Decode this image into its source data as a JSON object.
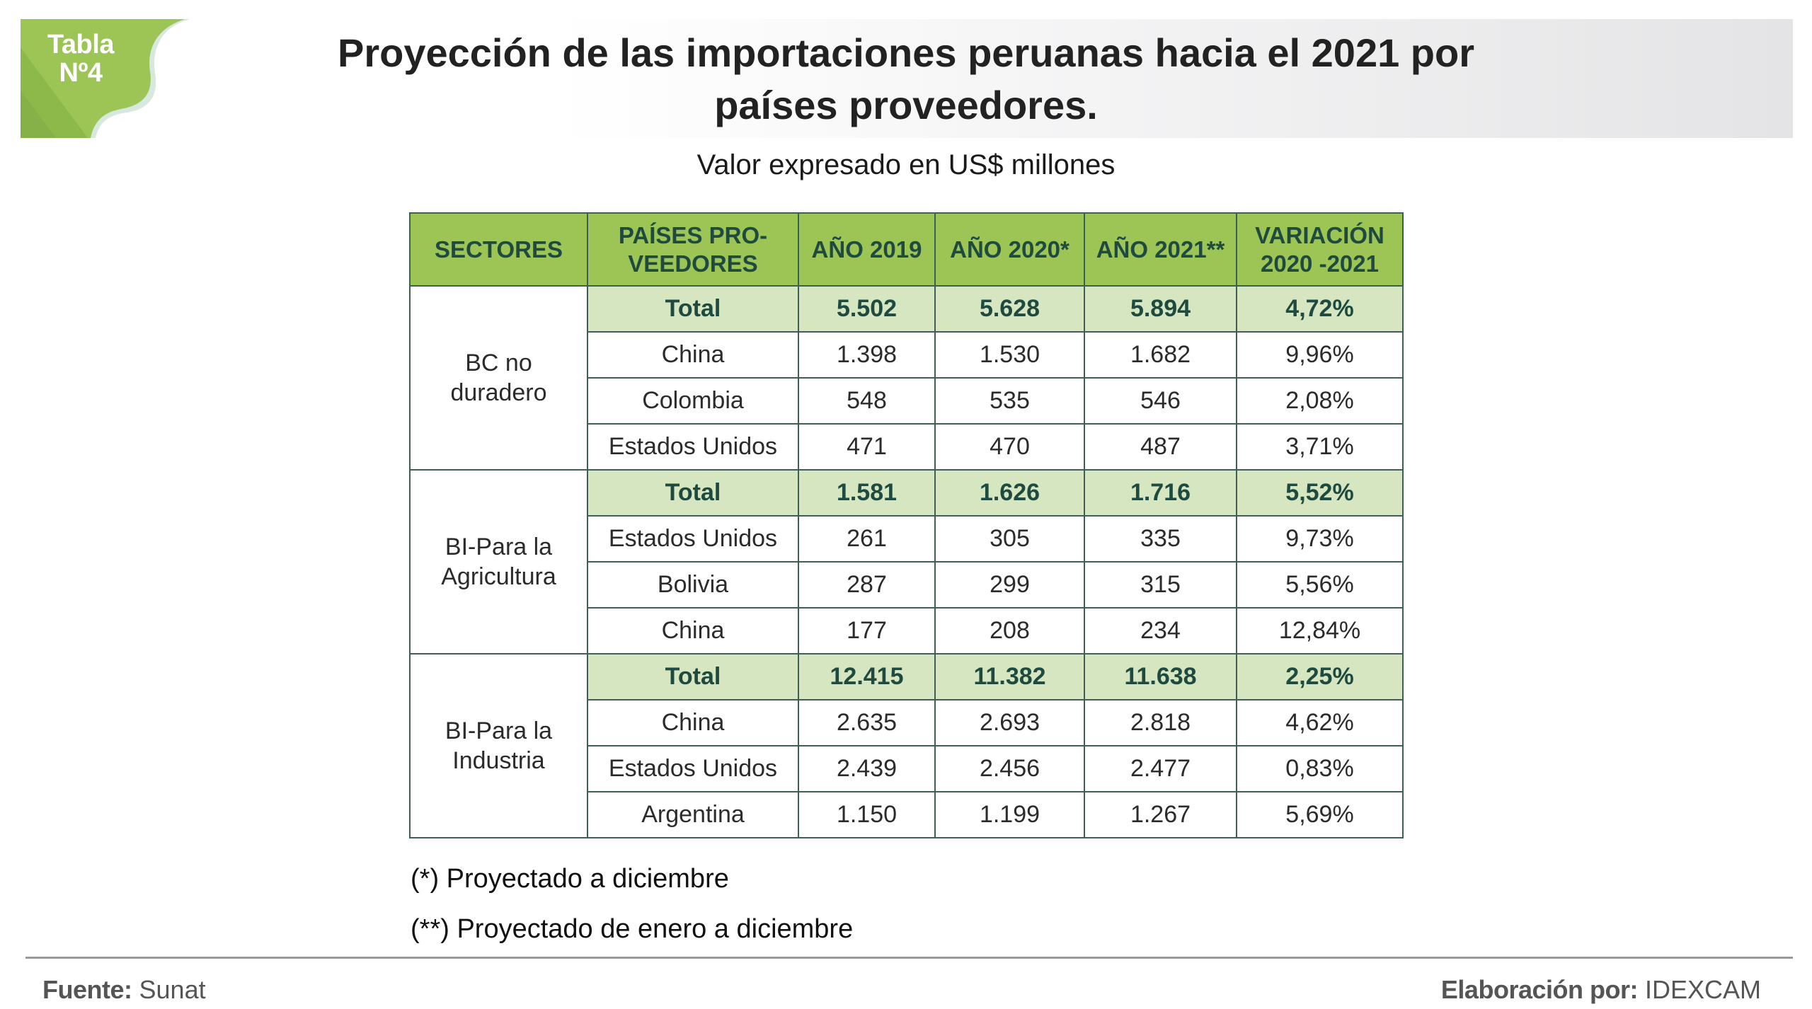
{
  "badge": {
    "line1": "Tabla",
    "line2": "Nº4",
    "color": "#9dc556"
  },
  "header": {
    "title_line1": "Proyección de las importaciones peruanas hacia el 2021 por",
    "title_line2": "países proveedores.",
    "subtitle": "Valor expresado en US$ millones"
  },
  "colors": {
    "header_green": "#9dc556",
    "total_row_green": "#d6e6c0",
    "border": "#3e5f58",
    "header_text": "#1e4a3f"
  },
  "table": {
    "columns": [
      {
        "line1": "SECTORES",
        "line2": ""
      },
      {
        "line1": "PAÍSES PRO-",
        "line2": "VEEDORES"
      },
      {
        "line1": "AÑO 2019",
        "line2": ""
      },
      {
        "line1": "AÑO 2020*",
        "line2": ""
      },
      {
        "line1": "AÑO 2021**",
        "line2": ""
      },
      {
        "line1": "VARIACIÓN",
        "line2": "2020 -2021"
      }
    ],
    "groups": [
      {
        "sector_line1": "BC no",
        "sector_line2": "duradero",
        "rows": [
          {
            "country": "Total",
            "y2019": "5.502",
            "y2020": "5.628",
            "y2021": "5.894",
            "variation": "4,72%",
            "is_total": true
          },
          {
            "country": "China",
            "y2019": "1.398",
            "y2020": "1.530",
            "y2021": "1.682",
            "variation": "9,96%",
            "is_total": false
          },
          {
            "country": "Colombia",
            "y2019": "548",
            "y2020": "535",
            "y2021": "546",
            "variation": "2,08%",
            "is_total": false
          },
          {
            "country": "Estados Unidos",
            "y2019": "471",
            "y2020": "470",
            "y2021": "487",
            "variation": "3,71%",
            "is_total": false
          }
        ]
      },
      {
        "sector_line1": "BI-Para la",
        "sector_line2": "Agricultura",
        "rows": [
          {
            "country": "Total",
            "y2019": "1.581",
            "y2020": "1.626",
            "y2021": "1.716",
            "variation": "5,52%",
            "is_total": true
          },
          {
            "country": "Estados Unidos",
            "y2019": "261",
            "y2020": "305",
            "y2021": "335",
            "variation": "9,73%",
            "is_total": false
          },
          {
            "country": "Bolivia",
            "y2019": "287",
            "y2020": "299",
            "y2021": "315",
            "variation": "5,56%",
            "is_total": false
          },
          {
            "country": "China",
            "y2019": "177",
            "y2020": "208",
            "y2021": "234",
            "variation": "12,84%",
            "is_total": false
          }
        ]
      },
      {
        "sector_line1": "BI-Para la",
        "sector_line2": "Industria",
        "rows": [
          {
            "country": "Total",
            "y2019": "12.415",
            "y2020": "11.382",
            "y2021": "11.638",
            "variation": "2,25%",
            "is_total": true
          },
          {
            "country": "China",
            "y2019": "2.635",
            "y2020": "2.693",
            "y2021": "2.818",
            "variation": "4,62%",
            "is_total": false
          },
          {
            "country": "Estados Unidos",
            "y2019": "2.439",
            "y2020": "2.456",
            "y2021": "2.477",
            "variation": "0,83%",
            "is_total": false
          },
          {
            "country": "Argentina",
            "y2019": "1.150",
            "y2020": "1.199",
            "y2021": "1.267",
            "variation": "5,69%",
            "is_total": false
          }
        ]
      }
    ]
  },
  "footnotes": [
    "(*) Proyectado a diciembre",
    "(**) Proyectado de enero a diciembre"
  ],
  "footer": {
    "source_label": "Fuente:",
    "source_value": "Sunat",
    "credit_label": "Elaboración por:",
    "credit_value": "IDEXCAM"
  }
}
